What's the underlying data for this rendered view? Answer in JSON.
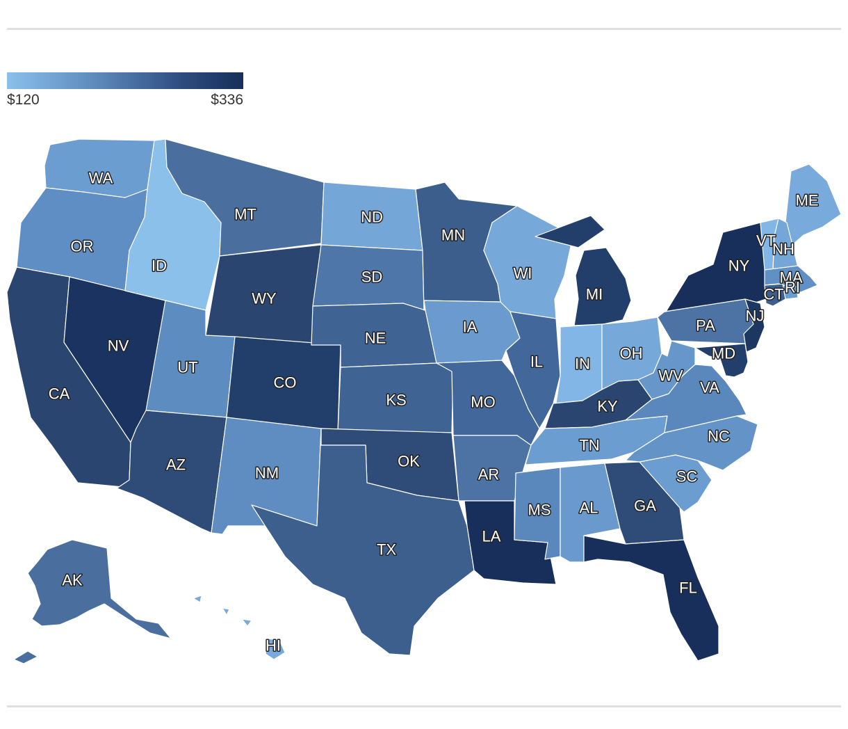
{
  "legend": {
    "min_label": "$120",
    "max_label": "$336",
    "min_color": "#8bc0ea",
    "max_color": "#172f5a"
  },
  "states": [
    {
      "abbr": "WA",
      "fill": "#6c9dd0"
    },
    {
      "abbr": "OR",
      "fill": "#5f8ec4"
    },
    {
      "abbr": "CA",
      "fill": "#2a4670"
    },
    {
      "abbr": "NV",
      "fill": "#1b3360"
    },
    {
      "abbr": "ID",
      "fill": "#8bc0ea"
    },
    {
      "abbr": "MT",
      "fill": "#4a6f9e"
    },
    {
      "abbr": "WY",
      "fill": "#2a4670"
    },
    {
      "abbr": "UT",
      "fill": "#5d8cc0"
    },
    {
      "abbr": "AZ",
      "fill": "#2f4c78"
    },
    {
      "abbr": "CO",
      "fill": "#223e6a"
    },
    {
      "abbr": "NM",
      "fill": "#5f8dc2"
    },
    {
      "abbr": "ND",
      "fill": "#74a6d8"
    },
    {
      "abbr": "SD",
      "fill": "#4f76a8"
    },
    {
      "abbr": "NE",
      "fill": "#3f6494"
    },
    {
      "abbr": "KS",
      "fill": "#3f6494"
    },
    {
      "abbr": "OK",
      "fill": "#2f4c78"
    },
    {
      "abbr": "TX",
      "fill": "#3c5f8e"
    },
    {
      "abbr": "MN",
      "fill": "#3b5e8c"
    },
    {
      "abbr": "IA",
      "fill": "#6b9bce"
    },
    {
      "abbr": "MO",
      "fill": "#42679a"
    },
    {
      "abbr": "AR",
      "fill": "#4c73a4"
    },
    {
      "abbr": "LA",
      "fill": "#172f5a"
    },
    {
      "abbr": "WI",
      "fill": "#76a8da"
    },
    {
      "abbr": "IL",
      "fill": "#42679a"
    },
    {
      "abbr": "MS",
      "fill": "#5a88bc"
    },
    {
      "abbr": "MI",
      "fill": "#223e6a"
    },
    {
      "abbr": "IN",
      "fill": "#82b6e6"
    },
    {
      "abbr": "OH",
      "fill": "#76a8da"
    },
    {
      "abbr": "KY",
      "fill": "#2a4670"
    },
    {
      "abbr": "TN",
      "fill": "#6c9dd0"
    },
    {
      "abbr": "AL",
      "fill": "#6a9acd"
    },
    {
      "abbr": "GA",
      "fill": "#2f4c78"
    },
    {
      "abbr": "FL",
      "fill": "#172f5a"
    },
    {
      "abbr": "SC",
      "fill": "#6c9dd0"
    },
    {
      "abbr": "NC",
      "fill": "#6494c7"
    },
    {
      "abbr": "VA",
      "fill": "#5a88bc"
    },
    {
      "abbr": "WV",
      "fill": "#6797ca"
    },
    {
      "abbr": "PA",
      "fill": "#4c73a4"
    },
    {
      "abbr": "NY",
      "fill": "#172f5a"
    },
    {
      "abbr": "NJ",
      "fill": "#1d3763"
    },
    {
      "abbr": "MD",
      "fill": "#223e6a"
    },
    {
      "abbr": "ME",
      "fill": "#78aadc"
    },
    {
      "abbr": "VT",
      "fill": "#82b6e6"
    },
    {
      "abbr": "NH",
      "fill": "#74a6d8"
    },
    {
      "abbr": "MA",
      "fill": "#6090c4"
    },
    {
      "abbr": "RI",
      "fill": "#6c9dd0"
    },
    {
      "abbr": "CT",
      "fill": "#3c5f8e"
    },
    {
      "abbr": "AK",
      "fill": "#4a6f9e"
    },
    {
      "abbr": "HI",
      "fill": "#78aadc"
    }
  ]
}
